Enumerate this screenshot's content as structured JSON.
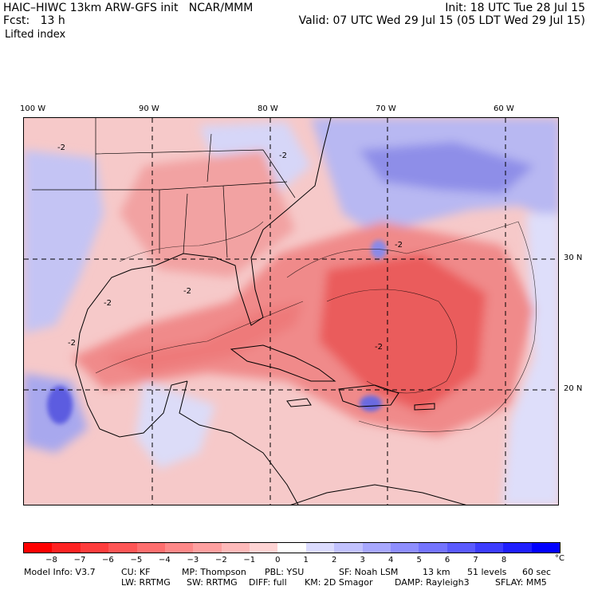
{
  "header": {
    "line1_left": "HAIC–HIWC 13km ARW-GFS init   NCAR/MMM",
    "line1_right": "Init: 18 UTC Tue 28 Jul 15",
    "line2_left": "Fcst:   13 h",
    "line2_right": "Valid: 07 UTC Wed 29 Jul 15 (05 LDT Wed 29 Jul 15)",
    "field": "Lifted index"
  },
  "axes": {
    "lon_labels": [
      "100 W",
      "90 W",
      "80 W",
      "70 W",
      "60 W"
    ],
    "lat_labels": [
      "30 N",
      "20 N"
    ]
  },
  "colorbar": {
    "labels": [
      "−8",
      "−7",
      "−6",
      "−5",
      "−4",
      "−3",
      "−2",
      "−1",
      "0",
      "1",
      "2",
      "3",
      "4",
      "5",
      "6",
      "7",
      "8"
    ],
    "unit": "°C",
    "colors": [
      "#ff0000",
      "#ff2222",
      "#ff3c3c",
      "#ff5555",
      "#ff6e6e",
      "#ff8888",
      "#ffa0a0",
      "#ffbaba",
      "#ffd4d4",
      "#ffffff",
      "#dcdcff",
      "#c2c2ff",
      "#a8a8ff",
      "#8e8eff",
      "#7474ff",
      "#5a5aff",
      "#3c3cff",
      "#1e1eff",
      "#0000ff"
    ]
  },
  "contour_label": "-2",
  "footer": {
    "line1": [
      "Model Info: V3.7",
      "CU: KF",
      "MP: Thompson",
      "PBL: YSU",
      "SF: Noah LSM",
      "13 km",
      "51 levels",
      "60 sec"
    ],
    "line2": [
      "LW: RRTMG",
      "SW: RRTMG",
      "DIFF: full",
      "KM: 2D Smagor",
      "DAMP: Rayleigh3",
      "SFLAY: MM5"
    ]
  }
}
